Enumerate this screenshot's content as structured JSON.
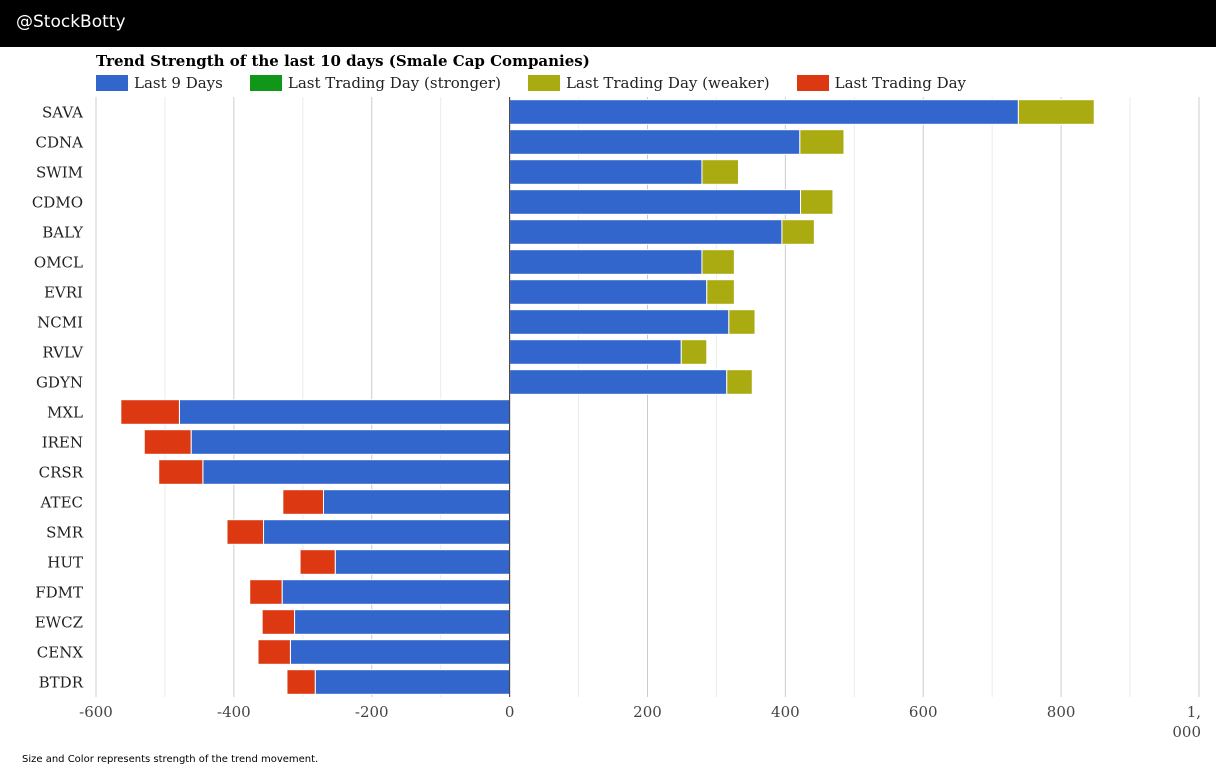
{
  "header": {
    "handle": "@StockBotty"
  },
  "footnote": "Size and Color represents strength of the trend movement.",
  "chart_data": {
    "type": "bar",
    "orientation": "horizontal",
    "stacked": true,
    "title": "Trend Strength of the last 10 days (Smale Cap Companies)",
    "xlabel": "",
    "ylabel": "",
    "xlim": [
      -600,
      1000
    ],
    "x_ticks": [
      "-600",
      "-400",
      "-200",
      "0",
      "200",
      "400",
      "600",
      "800",
      "1,\n000"
    ],
    "grid": true,
    "legend_position": "top",
    "categories": [
      "SAVA",
      "CDNA",
      "SWIM",
      "CDMO",
      "BALY",
      "OMCL",
      "EVRI",
      "NCMI",
      "RVLV",
      "GDYN",
      "MXL",
      "IREN",
      "CRSR",
      "ATEC",
      "SMR",
      "HUT",
      "FDMT",
      "EWCZ",
      "CENX",
      "BTDR"
    ],
    "series": [
      {
        "name": "Last 9 Days",
        "color": "#3366cc",
        "values": [
          738,
          421,
          279,
          422,
          395,
          279,
          286,
          318,
          249,
          315,
          -479,
          -462,
          -445,
          -270,
          -357,
          -253,
          -330,
          -312,
          -318,
          -282
        ]
      },
      {
        "name": "Last Trading Day (stronger)",
        "color": "#109618",
        "values": [
          0,
          0,
          0,
          0,
          0,
          0,
          0,
          0,
          0,
          0,
          0,
          0,
          0,
          0,
          0,
          0,
          0,
          0,
          0,
          0
        ]
      },
      {
        "name": "Last Trading Day (weaker)",
        "color": "#aaaa11",
        "values": [
          110,
          64,
          53,
          47,
          47,
          47,
          40,
          38,
          37,
          37,
          0,
          0,
          0,
          0,
          0,
          0,
          0,
          0,
          0,
          0
        ]
      },
      {
        "name": "Last Trading Day",
        "color": "#dc3912",
        "values": [
          0,
          0,
          0,
          0,
          0,
          0,
          0,
          0,
          0,
          0,
          -85,
          -68,
          -64,
          -59,
          -53,
          -51,
          -47,
          -47,
          -47,
          -41
        ]
      }
    ]
  }
}
